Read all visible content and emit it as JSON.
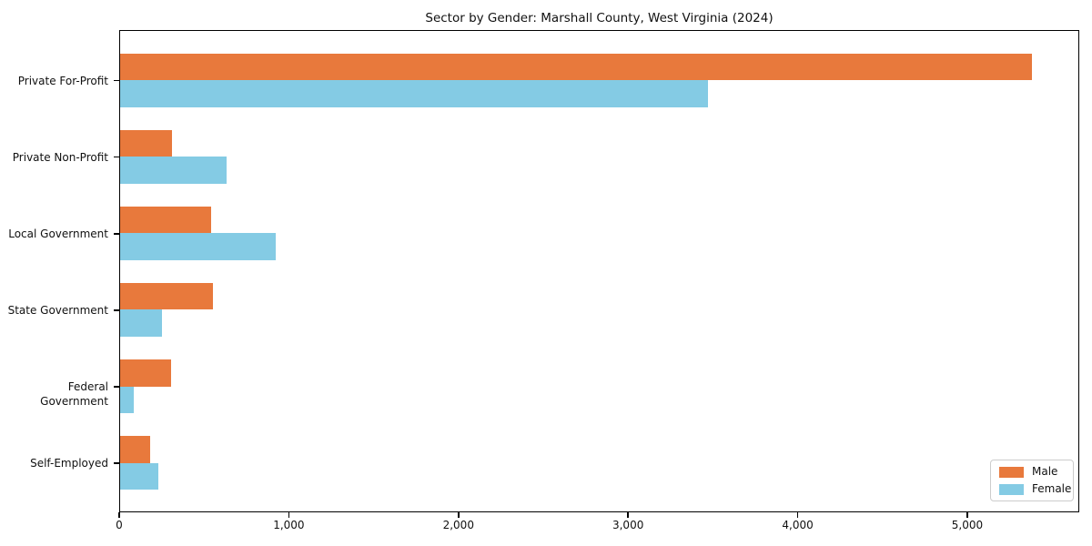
{
  "figure": {
    "title": "Sector by Gender: Marshall County, West Virginia (2024)"
  },
  "chart_data": {
    "type": "bar",
    "orientation": "horizontal",
    "title": "Sector by Gender: Marshall County, West Virginia (2024)",
    "xlabel": "",
    "ylabel": "",
    "categories": [
      "Private For-Profit",
      "Private Non-Profit",
      "Local Government",
      "State Government",
      "Federal Government",
      "Self-Employed"
    ],
    "series": [
      {
        "name": "Male",
        "color": "#E8793C",
        "values": [
          5385,
          305,
          535,
          550,
          300,
          175
        ]
      },
      {
        "name": "Female",
        "color": "#84CBE4",
        "values": [
          3470,
          630,
          920,
          245,
          80,
          225
        ]
      }
    ],
    "xlim": [
      0,
      5660
    ],
    "x_ticks": [
      0,
      1000,
      2000,
      3000,
      4000,
      5000
    ],
    "x_tick_labels": [
      "0",
      "1,000",
      "2,000",
      "3,000",
      "4,000",
      "5,000"
    ],
    "grid": false,
    "legend": {
      "position": "lower right",
      "entries": [
        "Male",
        "Female"
      ]
    }
  }
}
